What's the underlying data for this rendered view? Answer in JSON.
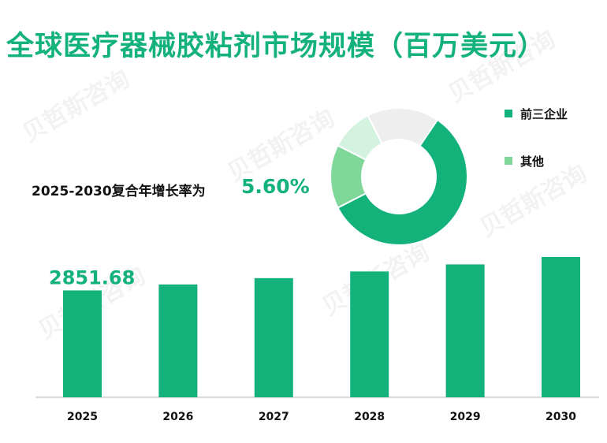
{
  "title": "全球医疗器械胶粘剂市场规模（百万美元）",
  "cagr": {
    "label": "2025-2030复合年增长率为",
    "value": "5.60%"
  },
  "colors": {
    "accent": "#13b27a",
    "other": "#7fd89a",
    "light": "#d4f2e0",
    "gray": "#eeeeee"
  },
  "legend": [
    {
      "label": "前三企业",
      "color": "#13b27a"
    },
    {
      "label": "其他",
      "color": "#7fd89a"
    }
  ],
  "chart_data": [
    {
      "type": "bar",
      "categories": [
        "2025",
        "2026",
        "2027",
        "2028",
        "2029",
        "2030"
      ],
      "values": [
        2851.68,
        3011.4,
        3180.0,
        3358.1,
        3546.2,
        3744.8
      ],
      "data_labels": [
        "2851.68",
        "",
        "",
        "",
        "",
        ""
      ],
      "color": "#13b27a"
    },
    {
      "type": "pie",
      "donut": true,
      "slices": [
        {
          "label": "前三企业",
          "value": 58,
          "color": "#13b27a"
        },
        {
          "label": "其他",
          "value": 15,
          "color": "#7fd89a"
        },
        {
          "label": "",
          "value": 10,
          "color": "#d4f2e0"
        },
        {
          "label": "",
          "value": 17,
          "color": "#eeeeee"
        }
      ]
    }
  ]
}
